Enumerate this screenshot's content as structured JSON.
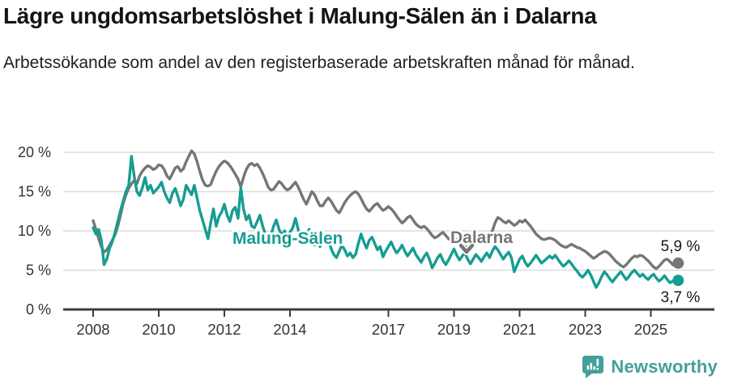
{
  "chart_data": {
    "type": "line",
    "title": "Lägre ungdomsarbetslöshet i Malung-Sälen än i Dalarna",
    "subtitle": "Arbetssökande som andel av den registerbaserade arbetskraften månad för månad.",
    "x_frequency": "monthly",
    "x_start": "2008-01",
    "x_end": "2025-11",
    "x_tick_years": [
      2008,
      2010,
      2012,
      2014,
      2017,
      2019,
      2021,
      2023,
      2025
    ],
    "y_ticks": [
      {
        "value": 0,
        "label": "0 %"
      },
      {
        "value": 5,
        "label": "5 %"
      },
      {
        "value": 10,
        "label": "10 %"
      },
      {
        "value": 15,
        "label": "15 %"
      },
      {
        "value": 20,
        "label": "20 %"
      }
    ],
    "ylim": [
      0,
      21
    ],
    "unit": "%",
    "grid": "horizontal",
    "legend": "inline-labels",
    "series": [
      {
        "name": "Dalarna",
        "data_name": "dalarna",
        "color_key": "dalarna",
        "end_label": "5,9 %",
        "end_value": 5.9,
        "end_label_position": "above",
        "values": [
          11.3,
          10.2,
          9.0,
          8.0,
          7.3,
          7.6,
          8.2,
          8.8,
          9.5,
          10.6,
          12.0,
          13.5,
          14.6,
          15.4,
          16.0,
          16.4,
          16.0,
          17.0,
          17.6,
          18.0,
          18.3,
          18.1,
          17.8,
          18.0,
          18.4,
          18.3,
          17.8,
          17.0,
          16.6,
          17.3,
          18.0,
          18.2,
          17.6,
          17.9,
          18.8,
          19.5,
          20.2,
          19.8,
          18.8,
          17.6,
          16.5,
          15.8,
          15.7,
          15.9,
          16.8,
          17.6,
          18.2,
          18.6,
          18.9,
          18.7,
          18.3,
          17.8,
          17.2,
          16.6,
          15.6,
          16.8,
          17.8,
          18.4,
          18.6,
          18.3,
          18.5,
          18.0,
          17.3,
          16.5,
          15.6,
          15.2,
          15.3,
          15.8,
          16.3,
          16.0,
          15.5,
          15.2,
          15.4,
          15.8,
          16.2,
          15.6,
          14.8,
          14.0,
          13.4,
          14.2,
          15.0,
          14.6,
          13.8,
          13.2,
          13.2,
          13.8,
          14.2,
          13.8,
          13.2,
          12.6,
          12.3,
          12.9,
          13.6,
          14.1,
          14.5,
          14.8,
          15.0,
          14.7,
          14.1,
          13.4,
          12.8,
          12.5,
          12.9,
          13.3,
          13.5,
          13.0,
          12.6,
          12.8,
          13.1,
          12.8,
          12.4,
          11.9,
          11.4,
          11.0,
          11.3,
          11.7,
          11.9,
          11.4,
          10.9,
          10.6,
          10.4,
          10.6,
          10.3,
          9.9,
          9.4,
          9.1,
          9.3,
          9.6,
          9.8,
          9.4,
          9.0,
          8.8,
          8.6,
          8.9,
          8.7,
          8.4,
          8.0,
          7.9,
          8.2,
          8.5,
          8.7,
          8.9,
          9.0,
          9.2,
          9.4,
          9.3,
          10.0,
          11.0,
          11.7,
          11.5,
          11.2,
          11.0,
          11.3,
          11.0,
          10.7,
          10.9,
          11.3,
          11.1,
          11.4,
          11.0,
          10.6,
          10.1,
          9.6,
          9.3,
          9.0,
          8.9,
          9.0,
          9.1,
          9.0,
          8.8,
          8.5,
          8.2,
          8.0,
          7.9,
          8.1,
          8.3,
          8.1,
          7.9,
          7.8,
          7.6,
          7.4,
          7.1,
          6.8,
          6.5,
          6.7,
          7.0,
          7.2,
          7.4,
          7.3,
          7.0,
          6.6,
          6.2,
          5.9,
          5.6,
          5.4,
          5.7,
          6.1,
          6.5,
          6.8,
          6.7,
          6.9,
          6.8,
          6.5,
          6.2,
          5.8,
          5.4,
          5.2,
          5.5,
          5.9,
          6.3,
          6.4,
          6.1,
          5.7,
          5.5,
          5.9
        ]
      },
      {
        "name": "Malung-Sälen",
        "data_name": "malung-salen",
        "color_key": "malung",
        "end_label": "3,7 %",
        "end_value": 3.7,
        "end_label_position": "below",
        "values": [
          10.4,
          9.6,
          10.2,
          8.8,
          5.7,
          6.4,
          7.8,
          8.6,
          9.8,
          11.2,
          12.6,
          13.8,
          15.0,
          15.8,
          19.5,
          17.0,
          15.0,
          14.5,
          15.5,
          16.8,
          15.2,
          15.8,
          14.8,
          15.2,
          15.6,
          16.2,
          15.0,
          14.2,
          13.6,
          14.8,
          15.4,
          14.4,
          13.2,
          14.0,
          15.8,
          15.2,
          14.6,
          15.8,
          14.2,
          12.6,
          11.4,
          10.2,
          9.0,
          11.0,
          12.8,
          10.6,
          11.8,
          12.4,
          13.4,
          12.0,
          11.2,
          12.6,
          13.0,
          11.6,
          15.5,
          12.8,
          11.4,
          12.0,
          10.6,
          10.4,
          11.2,
          12.0,
          10.6,
          9.6,
          8.6,
          9.4,
          10.6,
          11.4,
          10.2,
          9.4,
          10.0,
          9.2,
          9.8,
          10.4,
          11.6,
          10.2,
          9.0,
          8.4,
          9.2,
          10.2,
          9.0,
          8.2,
          8.8,
          8.0,
          8.6,
          9.4,
          8.8,
          7.8,
          7.0,
          6.6,
          7.4,
          8.2,
          7.6,
          6.8,
          7.2,
          6.6,
          7.0,
          8.4,
          9.6,
          8.6,
          7.8,
          8.8,
          9.2,
          8.4,
          7.6,
          8.0,
          6.7,
          7.4,
          8.0,
          8.6,
          7.8,
          7.2,
          7.6,
          8.2,
          7.4,
          6.8,
          7.3,
          7.8,
          7.0,
          6.5,
          6.0,
          6.7,
          7.2,
          6.4,
          5.3,
          5.9,
          6.6,
          7.0,
          6.2,
          5.7,
          6.3,
          7.0,
          7.7,
          6.9,
          6.3,
          6.8,
          7.2,
          6.4,
          5.8,
          6.4,
          7.0,
          6.6,
          6.1,
          6.7,
          7.2,
          6.6,
          7.4,
          8.0,
          7.6,
          7.0,
          6.4,
          6.9,
          7.3,
          6.6,
          4.8,
          5.6,
          6.4,
          6.8,
          6.0,
          5.5,
          5.9,
          6.4,
          6.9,
          6.4,
          5.9,
          6.2,
          6.5,
          6.8,
          6.5,
          6.9,
          6.4,
          5.9,
          5.5,
          5.8,
          6.2,
          5.8,
          5.3,
          4.9,
          4.4,
          4.1,
          4.5,
          5.0,
          4.4,
          3.6,
          2.8,
          3.4,
          4.2,
          4.8,
          4.4,
          3.9,
          3.5,
          4.0,
          4.4,
          4.8,
          4.3,
          3.8,
          4.2,
          4.7,
          5.0,
          4.6,
          4.2,
          4.5,
          4.1,
          3.8,
          4.2,
          4.5,
          4.0,
          3.6,
          3.9,
          4.3,
          3.8,
          3.4,
          3.6,
          3.9,
          3.7
        ]
      }
    ]
  },
  "colors": {
    "malung": "#169D93",
    "dalarna": "#767676",
    "grid": "#DCDCDC",
    "axis": "#3B3B3B",
    "axis_text": "#333333",
    "value_text": "#1A1A1A",
    "logo": "#43A09A"
  },
  "footer": {
    "brand": "Newsworthy"
  }
}
